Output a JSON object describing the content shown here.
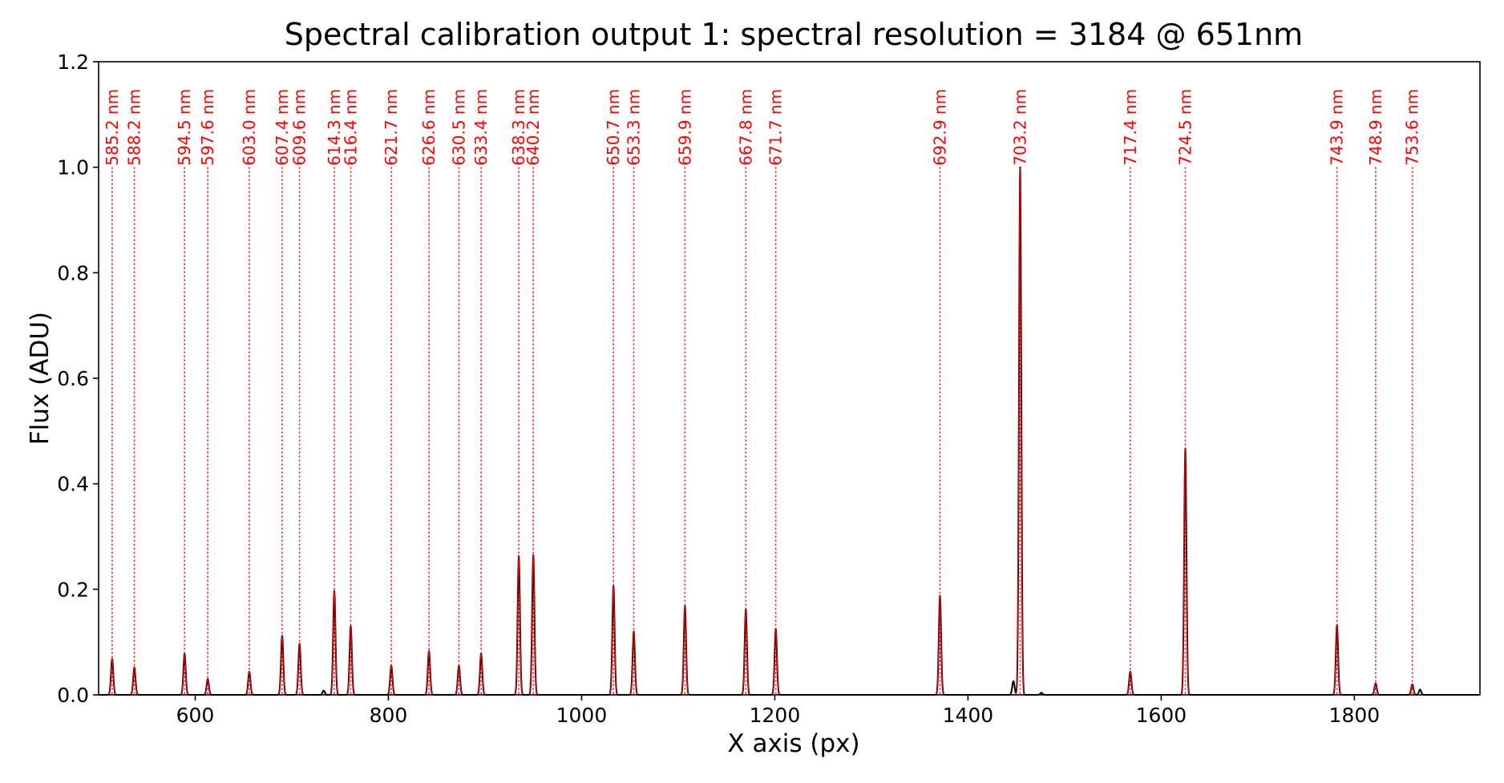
{
  "chart_data": {
    "type": "line",
    "title": "Spectral calibration output 1: spectral resolution = 3184 @ 651nm",
    "xlabel": "X axis (px)",
    "ylabel": "Flux (ADU)",
    "xlim": [
      500,
      1930
    ],
    "ylim": [
      0.0,
      1.2
    ],
    "x_ticks": [
      600,
      800,
      1000,
      1200,
      1400,
      1600,
      1800
    ],
    "x_tick_labels": [
      "600",
      "800",
      "1000",
      "1200",
      "1400",
      "1600",
      "1800"
    ],
    "y_ticks": [
      0.0,
      0.2,
      0.4,
      0.6,
      0.8,
      1.0,
      1.2
    ],
    "y_tick_labels": [
      "0.0",
      "0.2",
      "0.4",
      "0.6",
      "0.8",
      "1.0",
      "1.2"
    ],
    "grid": false,
    "colors": {
      "spectrum": "#000000",
      "marker": "#ff0000"
    },
    "lines": [
      {
        "x": 514,
        "peak": 0.068,
        "label": "585.2 nm"
      },
      {
        "x": 537,
        "peak": 0.052,
        "label": "588.2 nm"
      },
      {
        "x": 589,
        "peak": 0.078,
        "label": "594.5 nm"
      },
      {
        "x": 613,
        "peak": 0.03,
        "label": "597.6 nm"
      },
      {
        "x": 656,
        "peak": 0.044,
        "label": "603.0 nm"
      },
      {
        "x": 690,
        "peak": 0.112,
        "label": "607.4 nm"
      },
      {
        "x": 708,
        "peak": 0.097,
        "label": "609.6 nm"
      },
      {
        "x": 744,
        "peak": 0.197,
        "label": "614.3 nm"
      },
      {
        "x": 761,
        "peak": 0.13,
        "label": "616.4 nm"
      },
      {
        "x": 803,
        "peak": 0.055,
        "label": "621.7 nm"
      },
      {
        "x": 842,
        "peak": 0.083,
        "label": "626.6 nm"
      },
      {
        "x": 873,
        "peak": 0.055,
        "label": "630.5 nm"
      },
      {
        "x": 896,
        "peak": 0.078,
        "label": "633.4 nm"
      },
      {
        "x": 935,
        "peak": 0.263,
        "label": "638.3 nm"
      },
      {
        "x": 950,
        "peak": 0.265,
        "label": "640.2 nm"
      },
      {
        "x": 1033,
        "peak": 0.206,
        "label": "650.7 nm"
      },
      {
        "x": 1054,
        "peak": 0.12,
        "label": "653.3 nm"
      },
      {
        "x": 1107,
        "peak": 0.168,
        "label": "659.9 nm"
      },
      {
        "x": 1170,
        "peak": 0.162,
        "label": "667.8 nm"
      },
      {
        "x": 1201,
        "peak": 0.125,
        "label": "671.7 nm"
      },
      {
        "x": 1371,
        "peak": 0.188,
        "label": "692.9 nm"
      },
      {
        "x": 1454,
        "peak": 1.0,
        "label": "703.2 nm"
      },
      {
        "x": 1568,
        "peak": 0.044,
        "label": "717.4 nm"
      },
      {
        "x": 1625,
        "peak": 0.466,
        "label": "724.5 nm"
      },
      {
        "x": 1782,
        "peak": 0.132,
        "label": "743.9 nm"
      },
      {
        "x": 1822,
        "peak": 0.022,
        "label": "748.9 nm"
      },
      {
        "x": 1860,
        "peak": 0.02,
        "label": "753.6 nm"
      }
    ],
    "extra_peaks": [
      {
        "x": 733,
        "peak": 0.008
      },
      {
        "x": 1447,
        "peak": 0.026
      },
      {
        "x": 1476,
        "peak": 0.004
      },
      {
        "x": 1868,
        "peak": 0.01
      }
    ]
  }
}
